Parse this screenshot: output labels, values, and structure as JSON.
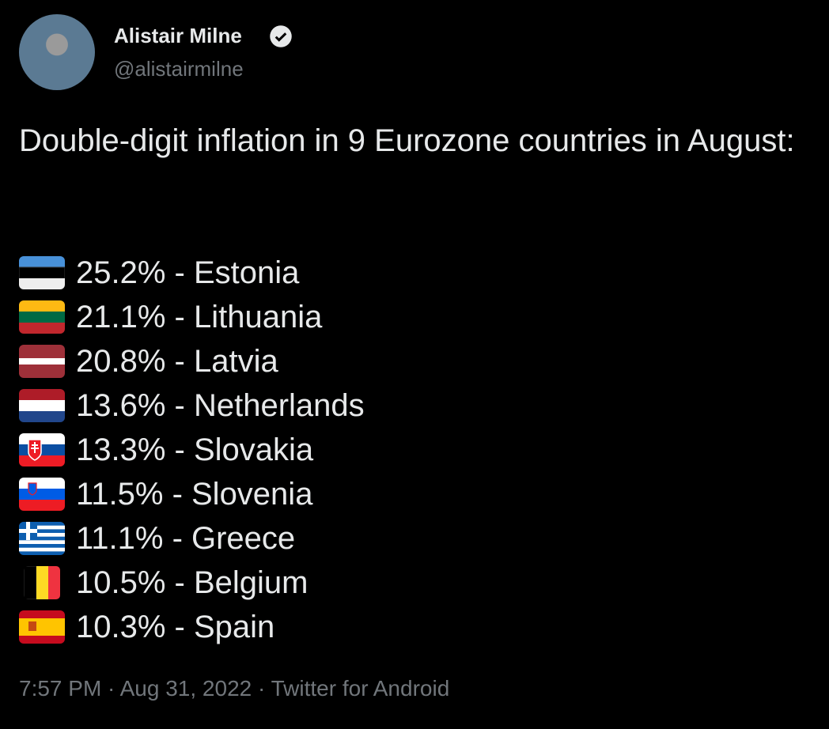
{
  "author": {
    "name": "Alistair Milne",
    "handle": "@alistairmilne"
  },
  "tweet": {
    "text": "Double-digit inflation in 9 Eurozone countries in August:",
    "items": [
      "25.2% - Estonia",
      "21.1% - Lithuania",
      "20.8% - Latvia",
      "13.6% - Netherlands",
      "13.3% - Slovakia",
      "11.5% - Slovenia",
      "11.1% - Greece",
      "10.5% - Belgium",
      "10.3% - Spain"
    ]
  },
  "footer": {
    "time": "7:57 PM",
    "date": "Aug 31, 2022",
    "source": "Twitter for Android"
  }
}
